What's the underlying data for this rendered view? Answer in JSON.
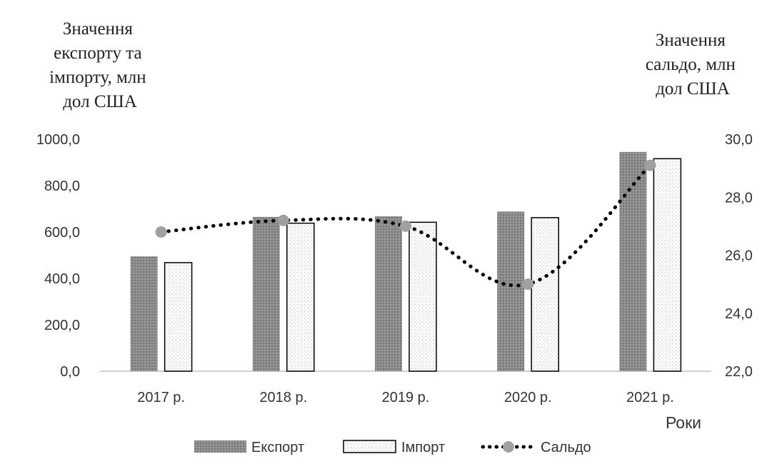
{
  "chart_data": {
    "type": "bar",
    "categories": [
      "2017 р.",
      "2018 р.",
      "2019 р.",
      "2020 р.",
      "2021 р."
    ],
    "y_left_title": [
      "Значення",
      "експорту та",
      "імпорту, млн",
      "дол США"
    ],
    "y_right_title": [
      "Значення",
      "сальдо, млн",
      "дол США"
    ],
    "xlabel": "Роки",
    "ylim_left": [
      0,
      1000
    ],
    "yticks_left": [
      "0,0",
      "200,0",
      "400,0",
      "600,0",
      "800,0",
      "1000,0"
    ],
    "ylim_right": [
      22,
      30
    ],
    "yticks_right": [
      "22,0",
      "24,0",
      "26,0",
      "28,0",
      "30,0"
    ],
    "series": [
      {
        "name": "Експорт",
        "type": "bar",
        "axis": "left",
        "values": [
          495,
          665,
          668,
          688,
          945
        ]
      },
      {
        "name": "Імпорт",
        "type": "bar",
        "axis": "left",
        "values": [
          468,
          638,
          642,
          662,
          916
        ]
      },
      {
        "name": "Сальдо",
        "type": "line",
        "axis": "right",
        "values": [
          26.8,
          27.2,
          27.0,
          25.0,
          29.1
        ]
      }
    ],
    "grid": false,
    "legend_position": "bottom",
    "colors": {
      "export_fill": "#8a8a8a",
      "import_fill": "#f4f4f4",
      "saldo": "#000000",
      "saldo_marker": "#a0a0a0"
    }
  }
}
